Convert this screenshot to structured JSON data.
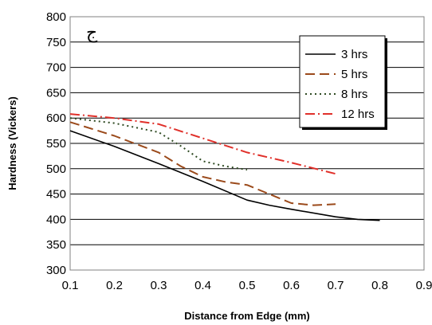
{
  "chart_data": {
    "type": "line",
    "title": "",
    "panel_label": "ج",
    "xlabel": "Distance from Edge (mm)",
    "ylabel": "Hardness (Vickers)",
    "xlim": [
      0.1,
      0.9
    ],
    "ylim": [
      300,
      800
    ],
    "x_ticks": [
      "0.1",
      "0.2",
      "0.3",
      "0.4",
      "0.5",
      "0.6",
      "0.7",
      "0.8",
      "0.9"
    ],
    "y_ticks": [
      "300",
      "350",
      "400",
      "450",
      "500",
      "550",
      "600",
      "650",
      "700",
      "750",
      "800"
    ],
    "grid": "horizontal",
    "legend_position": "top-right",
    "series": [
      {
        "name": "3 hrs",
        "color": "#000000",
        "dash": "solid",
        "points": [
          [
            0.1,
            575
          ],
          [
            0.2,
            544
          ],
          [
            0.3,
            510
          ],
          [
            0.4,
            475
          ],
          [
            0.5,
            438
          ],
          [
            0.55,
            428
          ],
          [
            0.6,
            420
          ],
          [
            0.7,
            405
          ],
          [
            0.75,
            400
          ],
          [
            0.8,
            398
          ]
        ]
      },
      {
        "name": "5 hrs",
        "color": "#9B4A1B",
        "dash": "long-dash",
        "points": [
          [
            0.1,
            592
          ],
          [
            0.2,
            565
          ],
          [
            0.3,
            532
          ],
          [
            0.35,
            505
          ],
          [
            0.4,
            484
          ],
          [
            0.45,
            474
          ],
          [
            0.5,
            468
          ],
          [
            0.55,
            450
          ],
          [
            0.6,
            432
          ],
          [
            0.65,
            428
          ],
          [
            0.7,
            430
          ]
        ]
      },
      {
        "name": "8 hrs",
        "color": "#2E4A22",
        "dash": "dotted",
        "points": [
          [
            0.1,
            600
          ],
          [
            0.2,
            590
          ],
          [
            0.3,
            572
          ],
          [
            0.35,
            545
          ],
          [
            0.4,
            515
          ],
          [
            0.45,
            505
          ],
          [
            0.5,
            498
          ]
        ]
      },
      {
        "name": "12 hrs",
        "color": "#E0302A",
        "dash": "dash-dot",
        "points": [
          [
            0.1,
            608
          ],
          [
            0.2,
            600
          ],
          [
            0.3,
            588
          ],
          [
            0.4,
            560
          ],
          [
            0.5,
            532
          ],
          [
            0.6,
            512
          ],
          [
            0.7,
            490
          ]
        ]
      }
    ]
  }
}
